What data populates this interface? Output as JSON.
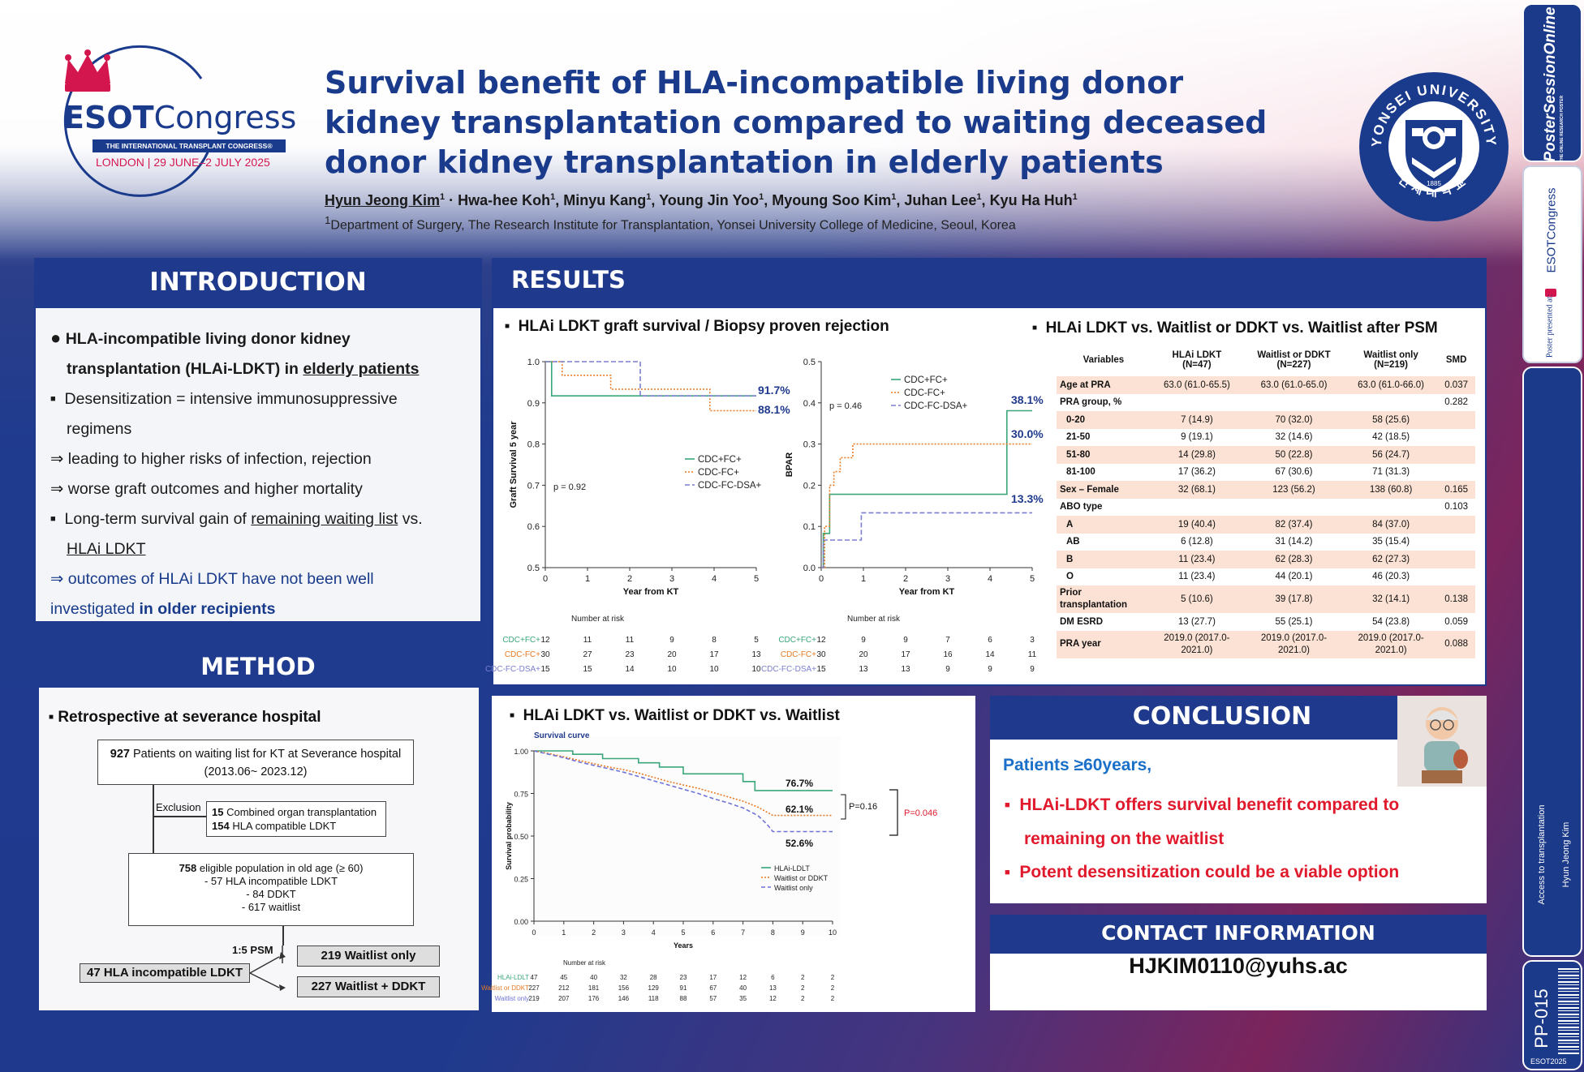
{
  "title_lines": [
    "Survival benefit of HLA-incompatible living donor",
    "kidney transplantation compared to waiting deceased",
    "donor kidney transplantation in elderly patients"
  ],
  "authors": [
    {
      "name": "Hyun Jeong Kim",
      "sup": "1"
    },
    {
      "name": "Hwa-hee Koh",
      "sup": "1"
    },
    {
      "name": "Minyu Kang",
      "sup": "1"
    },
    {
      "name": "Young Jin Yoo",
      "sup": "1"
    },
    {
      "name": "Myoung Soo Kim",
      "sup": "1"
    },
    {
      "name": "Juhan Lee",
      "sup": "1"
    },
    {
      "name": "Kyu Ha Huh",
      "sup": "1"
    }
  ],
  "affiliation": {
    "sup": "1",
    "text": "Department of Surgery, The Research Institute for Transplantation, Yonsei University College of Medicine, Seoul, Korea"
  },
  "esot": {
    "name_bold": "ESOT",
    "name_light": "Congress",
    "banner": "THE INTERNATIONAL TRANSPLANT CONGRESS®",
    "location": "LONDON | 29 JUNE–2 JULY 2025"
  },
  "yonsei": {
    "top": "YONSEI UNIVERSITY",
    "year": "1885",
    "bottom": "연세대학교"
  },
  "sections": {
    "introduction": "INTRODUCTION",
    "results": "RESULTS",
    "method": "METHOD",
    "conclusion": "CONCLUSION",
    "contact": "CONTACT INFORMATION"
  },
  "introduction": {
    "bullet1a": "HLA-incompatible living donor kidney",
    "bullet1b": "transplantation (HLAi-LDKT) in ",
    "bullet1c": "elderly patients",
    "sq1a": "Desensitization = intensive immunosuppressive",
    "sq1b": "regimens",
    "arr1": "⇒ leading to higher risks of infection, rejection",
    "arr2": "⇒ worse graft outcomes and higher mortality",
    "sq2a": "Long-term survival gain of ",
    "sq2b": "remaining waiting list",
    "sq2c": " vs.",
    "sq2d": "HLAi LDKT",
    "arr3": "⇒ outcomes of HLAi LDKT have not been well",
    "arr4a": "investigated ",
    "arr4b": "in older recipients"
  },
  "method": {
    "heading": "Retrospective at severance hospital",
    "box1_num": "927",
    "box1_text": " Patients on waiting list for KT at Severance hospital",
    "box1_range": "(2013.06~ 2023.12)",
    "exclusion": "Exclusion",
    "ex1_num": "15",
    "ex1_text": " Combined organ transplantation",
    "ex2_num": "154",
    "ex2_text": " HLA compatible LDKT",
    "box2_num": "758",
    "box2_text": " eligible population in old age (≥ 60)",
    "box2_l1": "- 57 HLA incompatible LDKT",
    "box2_l2": "- 84 DDKT",
    "box2_l3": "- 617 waitlist",
    "psm": "1:5 PSM",
    "left_box": "47 HLA incompatible LDKT",
    "right1": "219 Waitlist only",
    "right2": "227 Waitlist + DDKT"
  },
  "results": {
    "sub1": "HLAi LDKT graft survival / Biopsy proven rejection",
    "sub2": "HLAi LDKT vs. Waitlist or DDKT vs. Waitlist after PSM",
    "sub3": "HLAi LDKT vs. Waitlist or DDKT vs. Waitlist"
  },
  "conclusion": {
    "lead": "Patients ≥60years,",
    "b1a": "HLAi-LDKT offers survival benefit compared to",
    "b1b": "remaining on the waitlist",
    "b2": "Potent desensitization could be a viable option"
  },
  "contact": {
    "email": "HJKIM0110@yuhs.ac"
  },
  "sidebar": {
    "pso_a": "Poster",
    "pso_b": "SessionOnline",
    "pso_small": "THE ONLINE RESEARCH POSTER",
    "esot_side": "ESOTCongress",
    "presented": "Poster presented at:",
    "topic": "Access to transplantation",
    "author": "Hyun Jeong Kim",
    "code": "PP-015",
    "code_small": "ESOT2025"
  },
  "table": {
    "headers": [
      "Variables",
      "HLAi LDKT\n(N=47)",
      "Waitlist or DDKT\n(N=227)",
      "Waitlist only\n(N=219)",
      "SMD"
    ],
    "rows": [
      [
        "Age at PRA",
        "63.0 (61.0-65.5)",
        "63.0 (61.0-65.0)",
        "63.0 (61.0-66.0)",
        "0.037",
        1,
        0
      ],
      [
        "PRA group, %",
        "",
        "",
        "",
        "0.282",
        0,
        0
      ],
      [
        "0-20",
        "7 (14.9)",
        "70 (32.0)",
        "58 (25.6)",
        "",
        1,
        1
      ],
      [
        "21-50",
        "9 (19.1)",
        "32 (14.6)",
        "42 (18.5)",
        "",
        0,
        1
      ],
      [
        "51-80",
        "14 (29.8)",
        "50 (22.8)",
        "56 (24.7)",
        "",
        1,
        1
      ],
      [
        "81-100",
        "17 (36.2)",
        "67 (30.6)",
        "71 (31.3)",
        "",
        0,
        1
      ],
      [
        "Sex – Female",
        "32 (68.1)",
        "123 (56.2)",
        "138 (60.8)",
        "0.165",
        1,
        0
      ],
      [
        "ABO type",
        "",
        "",
        "",
        "0.103",
        0,
        0
      ],
      [
        "A",
        "19 (40.4)",
        "82 (37.4)",
        "84 (37.0)",
        "",
        1,
        1
      ],
      [
        "AB",
        "6 (12.8)",
        "31 (14.2)",
        "35 (15.4)",
        "",
        0,
        1
      ],
      [
        "B",
        "11 (23.4)",
        "62 (28.3)",
        "62 (27.3)",
        "",
        1,
        1
      ],
      [
        "O",
        "11 (23.4)",
        "44 (20.1)",
        "46 (20.3)",
        "",
        0,
        1
      ],
      [
        "Prior\ntransplantation",
        "5 (10.6)",
        "39 (17.8)",
        "32 (14.1)",
        "0.138",
        1,
        0
      ],
      [
        "DM ESRD",
        "13 (27.7)",
        "55 (25.1)",
        "54 (23.8)",
        "0.059",
        0,
        0
      ],
      [
        "PRA year",
        "2019.0 (2017.0-\n2021.0)",
        "2019.0 (2017.0-\n2021.0)",
        "2019.0 (2017.0-\n2021.0)",
        "0.088",
        1,
        0
      ]
    ]
  },
  "chart_data": [
    {
      "type": "line",
      "id": "graft",
      "ylabel": "Graft Survival 5 year",
      "xlabel": "Year from KT",
      "xlim": [
        0,
        5
      ],
      "ylim": [
        0.5,
        1.0
      ],
      "xticks": [
        0,
        1,
        2,
        3,
        4,
        5
      ],
      "yticks": [
        0.5,
        0.6,
        0.7,
        0.8,
        0.9,
        1.0
      ],
      "pvalue": "p = 0.92",
      "series": [
        {
          "name": "CDC+FC+",
          "color": "#3aa67a",
          "dash": "",
          "end_label": "91.7%",
          "points": [
            [
              0,
              1.0
            ],
            [
              0.15,
              1.0
            ],
            [
              0.15,
              0.917
            ],
            [
              5,
              0.917
            ]
          ]
        },
        {
          "name": "CDC-FC+",
          "color": "#e87a22",
          "dash": "2,2",
          "end_label": "88.1%",
          "points": [
            [
              0,
              1.0
            ],
            [
              0.4,
              1.0
            ],
            [
              0.4,
              0.967
            ],
            [
              1.55,
              0.967
            ],
            [
              1.55,
              0.933
            ],
            [
              3.9,
              0.933
            ],
            [
              3.9,
              0.881
            ],
            [
              5,
              0.881
            ]
          ]
        },
        {
          "name": "CDC-FC-DSA+",
          "color": "#7b7fd0",
          "dash": "6,3",
          "end_label": "",
          "points": [
            [
              0,
              1.0
            ],
            [
              2.25,
              1.0
            ],
            [
              2.25,
              0.917
            ],
            [
              5,
              0.917
            ]
          ]
        }
      ],
      "risk": {
        "title": "Number at risk",
        "rows": [
          {
            "name": "CDC+FC+",
            "values": [
              12,
              11,
              11,
              9,
              8,
              5
            ]
          },
          {
            "name": "CDC-FC+",
            "values": [
              30,
              27,
              23,
              20,
              17,
              13
            ]
          },
          {
            "name": "CDC-FC-DSA+",
            "values": [
              15,
              15,
              14,
              10,
              10,
              10
            ]
          }
        ]
      }
    },
    {
      "type": "line",
      "id": "bpar",
      "ylabel": "BPAR",
      "xlabel": "Year from KT",
      "xlim": [
        0,
        5
      ],
      "ylim": [
        0,
        0.5
      ],
      "xticks": [
        0,
        1,
        2,
        3,
        4,
        5
      ],
      "yticks": [
        0.0,
        0.1,
        0.2,
        0.3,
        0.4,
        0.5
      ],
      "pvalue": "p = 0.46",
      "series": [
        {
          "name": "CDC+FC+",
          "color": "#3aa67a",
          "dash": "",
          "end_label": "38.1%",
          "points": [
            [
              0,
              0
            ],
            [
              0.05,
              0
            ],
            [
              0.05,
              0.083
            ],
            [
              0.2,
              0.083
            ],
            [
              0.2,
              0.178
            ],
            [
              4.4,
              0.178
            ],
            [
              4.4,
              0.381
            ],
            [
              5,
              0.381
            ]
          ]
        },
        {
          "name": "CDC-FC+",
          "color": "#e87a22",
          "dash": "2,2",
          "end_label": "30.0%",
          "points": [
            [
              0,
              0
            ],
            [
              0.08,
              0
            ],
            [
              0.08,
              0.1
            ],
            [
              0.2,
              0.1
            ],
            [
              0.2,
              0.2
            ],
            [
              0.3,
              0.2
            ],
            [
              0.3,
              0.233
            ],
            [
              0.45,
              0.233
            ],
            [
              0.45,
              0.267
            ],
            [
              0.75,
              0.267
            ],
            [
              0.75,
              0.3
            ],
            [
              5,
              0.3
            ]
          ]
        },
        {
          "name": "CDC-FC-DSA+",
          "color": "#7b7fd0",
          "dash": "6,3",
          "end_label": "13.3%",
          "points": [
            [
              0,
              0
            ],
            [
              0.05,
              0
            ],
            [
              0.05,
              0.067
            ],
            [
              0.95,
              0.067
            ],
            [
              0.95,
              0.133
            ],
            [
              5,
              0.133
            ]
          ]
        }
      ],
      "risk": {
        "title": "Number at risk",
        "rows": [
          {
            "name": "CDC+FC+",
            "values": [
              12,
              9,
              9,
              7,
              6,
              3
            ]
          },
          {
            "name": "CDC-FC+",
            "values": [
              30,
              20,
              17,
              16,
              14,
              11
            ]
          },
          {
            "name": "CDC-FC-DSA+",
            "values": [
              15,
              13,
              13,
              9,
              9,
              9
            ]
          }
        ]
      }
    },
    {
      "type": "line",
      "id": "survival",
      "title": "Survival curve",
      "ylabel": "Survival probability",
      "xlabel": "Years",
      "xlim": [
        0,
        10
      ],
      "ylim": [
        0,
        1
      ],
      "xticks": [
        0,
        1,
        2,
        3,
        4,
        5,
        6,
        7,
        8,
        9,
        10
      ],
      "yticks": [
        0.0,
        0.25,
        0.5,
        0.75,
        1.0
      ],
      "p1": "P=0.16",
      "p2": "P=0.046",
      "series": [
        {
          "name": "HLAi-LDLT",
          "color": "#3aa67a",
          "dash": "",
          "end_label": "76.7%",
          "points": [
            [
              0,
              1.0
            ],
            [
              1.3,
              1.0
            ],
            [
              1.3,
              0.98
            ],
            [
              2.3,
              0.98
            ],
            [
              2.3,
              0.955
            ],
            [
              3.5,
              0.955
            ],
            [
              3.5,
              0.93
            ],
            [
              4.2,
              0.93
            ],
            [
              4.2,
              0.905
            ],
            [
              5,
              0.905
            ],
            [
              5,
              0.865
            ],
            [
              7,
              0.865
            ],
            [
              7,
              0.82
            ],
            [
              7.4,
              0.82
            ],
            [
              7.4,
              0.767
            ],
            [
              10,
              0.767
            ]
          ]
        },
        {
          "name": "Waitlist or DDKT",
          "color": "#e87a22",
          "dash": "2,2",
          "end_label": "62.1%",
          "points": [
            [
              0,
              1.0
            ],
            [
              0.5,
              0.985
            ],
            [
              1,
              0.965
            ],
            [
              1.5,
              0.945
            ],
            [
              2,
              0.925
            ],
            [
              2.5,
              0.905
            ],
            [
              3,
              0.89
            ],
            [
              3.5,
              0.87
            ],
            [
              4,
              0.845
            ],
            [
              4.5,
              0.82
            ],
            [
              5,
              0.8
            ],
            [
              5.5,
              0.78
            ],
            [
              6,
              0.755
            ],
            [
              6.5,
              0.73
            ],
            [
              7,
              0.705
            ],
            [
              7.5,
              0.67
            ],
            [
              8,
              0.621
            ],
            [
              10,
              0.621
            ]
          ]
        },
        {
          "name": "Waitlist only",
          "color": "#6f73d6",
          "dash": "5,3",
          "end_label": "52.6%",
          "points": [
            [
              0,
              1.0
            ],
            [
              0.5,
              0.98
            ],
            [
              1,
              0.96
            ],
            [
              1.5,
              0.935
            ],
            [
              2,
              0.915
            ],
            [
              2.5,
              0.895
            ],
            [
              3,
              0.875
            ],
            [
              3.5,
              0.85
            ],
            [
              4,
              0.825
            ],
            [
              4.5,
              0.8
            ],
            [
              5,
              0.775
            ],
            [
              5.5,
              0.75
            ],
            [
              6,
              0.72
            ],
            [
              6.5,
              0.695
            ],
            [
              7,
              0.665
            ],
            [
              7.5,
              0.62
            ],
            [
              7.8,
              0.57
            ],
            [
              8,
              0.526
            ],
            [
              10,
              0.526
            ]
          ]
        }
      ],
      "risk": {
        "title": "Number at risk",
        "rows": [
          {
            "name": "HLAi-LDLT",
            "values": [
              47,
              45,
              40,
              32,
              28,
              23,
              17,
              12,
              6,
              2,
              2
            ]
          },
          {
            "name": "Waitlist or DDKT",
            "values": [
              227,
              212,
              181,
              156,
              129,
              91,
              67,
              40,
              13,
              2,
              2
            ]
          },
          {
            "name": "Waitlist only",
            "values": [
              219,
              207,
              176,
              146,
              118,
              88,
              57,
              35,
              12,
              2,
              2
            ]
          }
        ]
      }
    }
  ]
}
